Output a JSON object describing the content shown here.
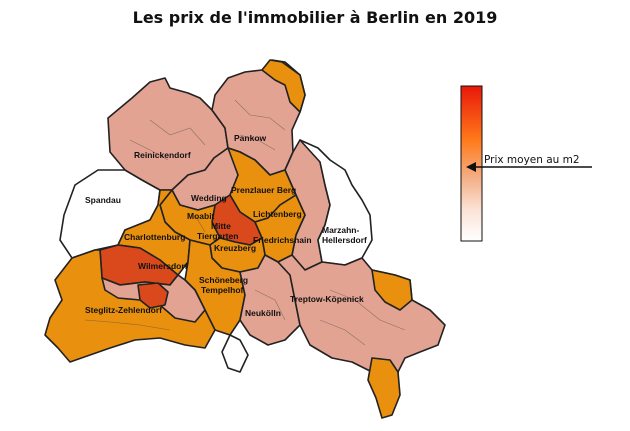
{
  "title": "Les prix de l'immobilier à Berlin en 2019",
  "legend": {
    "label": "Prix moyen au m2",
    "gradient": [
      "#e8180a",
      "#ff7a1a",
      "#f4b08a",
      "#fbe3d6",
      "#ffffff"
    ]
  },
  "districts": {
    "reinickendorf": "Reinickendorf",
    "pankow": "Pankow",
    "spandau": "Spandau",
    "wedding": "Wedding",
    "prenzlauer": "Prenzlauer Berg",
    "moabit": "Moabit",
    "mitte": "Mitte",
    "tiergarten": "Tiergarten",
    "lichtenberg": "Lichtenberg",
    "charlottenburg": "Charlottenburg",
    "friedrichshain": "Friedrichshain",
    "marzahn": "Marzahn-\nHellersdorf",
    "kreuzberg": "Kreuzberg",
    "wilmersdorf": "Wilmersdorf",
    "schoeneberg": "Schöneberg\nTempelhof",
    "steglitz": "Steglitz-Zehlendorf",
    "neukoelln": "Neukölln",
    "treptow": "Treptow-Köpenick"
  },
  "colors": {
    "white": "#ffffff",
    "pink": "#e3a392",
    "orange": "#e9900f",
    "red": "#d9491c",
    "light": "#f3c9bd"
  }
}
